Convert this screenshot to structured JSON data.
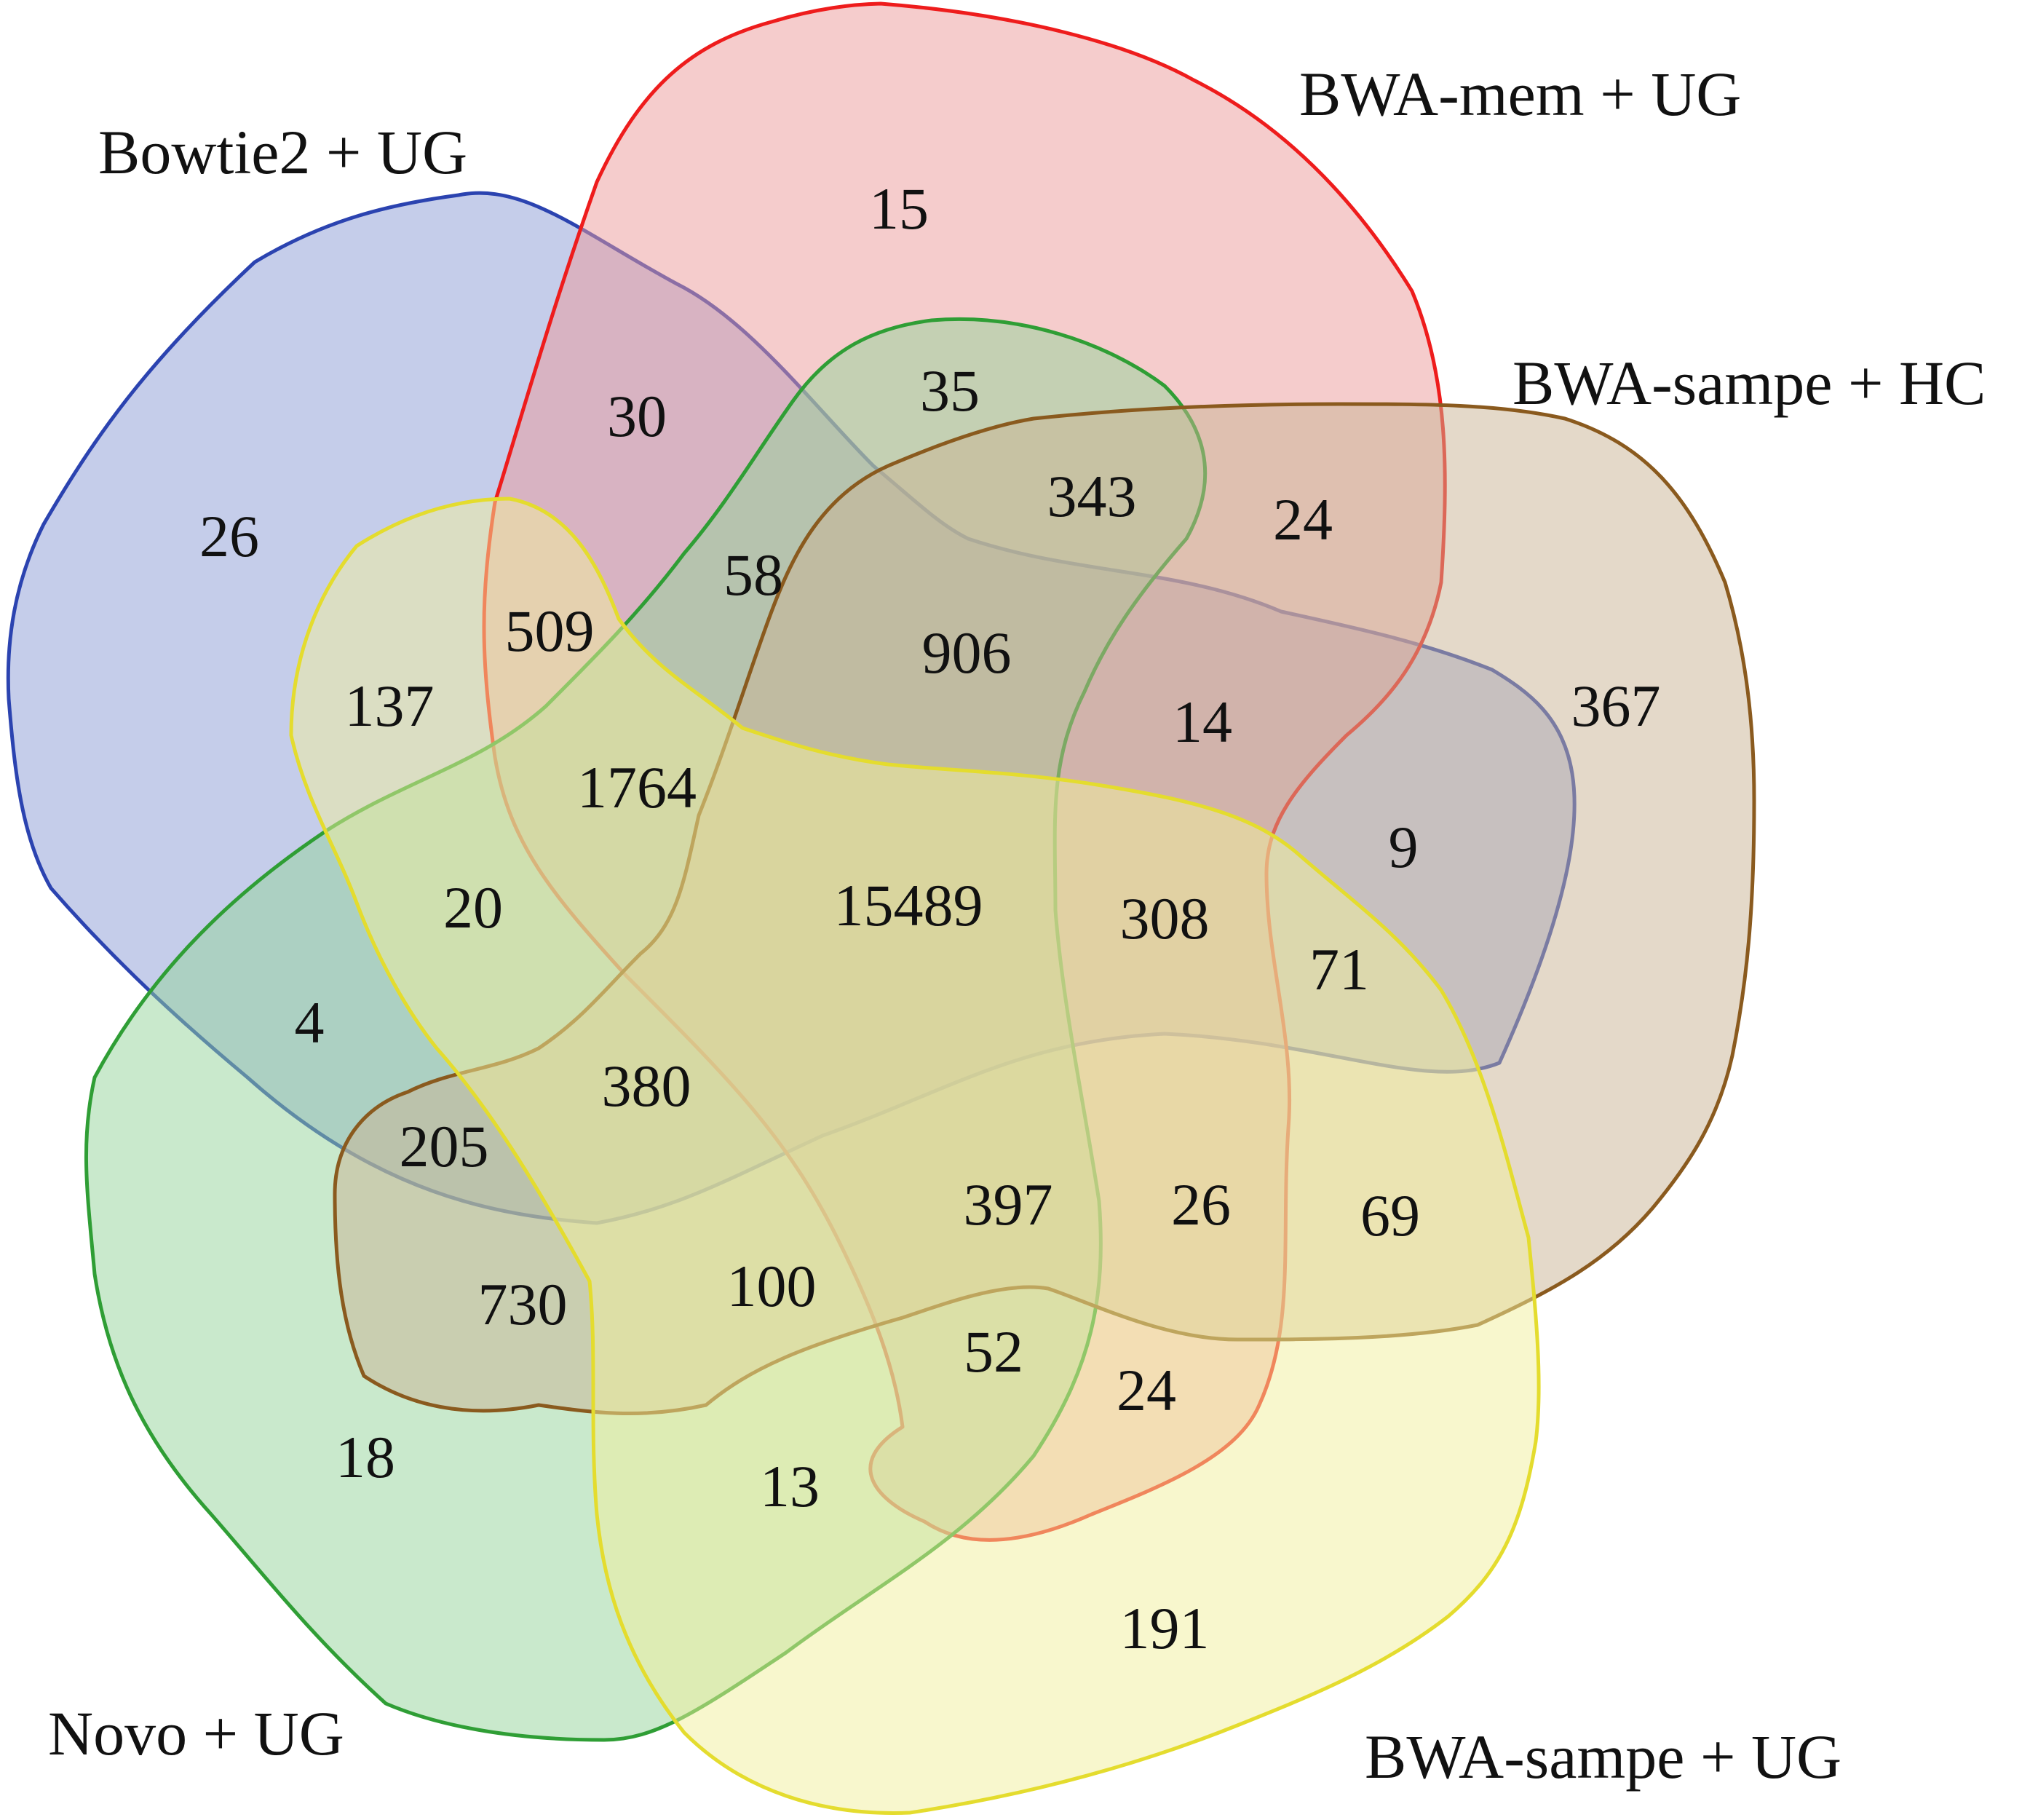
{
  "sets": [
    {
      "key": "bowtie2",
      "label": "Bowtie2 + UG",
      "fill": "#8c9bd6",
      "stroke": "#2b43b0"
    },
    {
      "key": "bwamem",
      "label": "BWA-mem + UG",
      "fill": "#ec9a9a",
      "stroke": "#ee1c1c"
    },
    {
      "key": "novo",
      "label": "Novo + UG",
      "fill": "#94d49a",
      "stroke": "#2f9e35"
    },
    {
      "key": "sampehc",
      "label": "BWA-sampe + HC",
      "fill": "#c9b493",
      "stroke": "#8a5a1e"
    },
    {
      "key": "sampeug",
      "label": "BWA-sampe + UG",
      "fill": "#f2f09c",
      "stroke": "#e4dc2e"
    }
  ],
  "regions": [
    {
      "key": "r-bwamem-only",
      "value": "15"
    },
    {
      "key": "r-bowtie2-only",
      "value": "26"
    },
    {
      "key": "r-bowtie2-bwamem",
      "value": "30"
    },
    {
      "key": "r-bwamem-novo",
      "value": "35"
    },
    {
      "key": "r-bwamem-novo-sampehc",
      "value": "343"
    },
    {
      "key": "r-bwamem-sampehc",
      "value": "24"
    },
    {
      "key": "r-sampehc-only",
      "value": "367"
    },
    {
      "key": "r-bowtie2-bwamem-novo",
      "value": "58"
    },
    {
      "key": "r-bowtie2-bwamem-sampeug",
      "value": "509"
    },
    {
      "key": "r-bowtie2-sampeug",
      "value": "137"
    },
    {
      "key": "r-bowtie2-bwamem-novo-sampehc",
      "value": "906"
    },
    {
      "key": "r-bowtie2-bwamem-sampehc",
      "value": "14"
    },
    {
      "key": "r-bowtie2-bwamem-novo-sampeug",
      "value": "1764"
    },
    {
      "key": "r-bowtie2-sampehc",
      "value": "9"
    },
    {
      "key": "r-bowtie2-novo-sampeug",
      "value": "20"
    },
    {
      "key": "r-all-five",
      "value": "15489"
    },
    {
      "key": "r-bowtie2-bwamem-sampehc-sampeug",
      "value": "308"
    },
    {
      "key": "r-bowtie2-sampehc-sampeug",
      "value": "71"
    },
    {
      "key": "r-bowtie2-novo",
      "value": "4"
    },
    {
      "key": "r-bowtie2-novo-sampehc-sampeug",
      "value": "380"
    },
    {
      "key": "r-bowtie2-novo-sampehc",
      "value": "205"
    },
    {
      "key": "r-bwamem-novo-sampehc-sampeug",
      "value": "397"
    },
    {
      "key": "r-bwamem-sampehc-sampeug",
      "value": "26"
    },
    {
      "key": "r-sampehc-sampeug",
      "value": "69"
    },
    {
      "key": "r-novo-sampehc",
      "value": "730"
    },
    {
      "key": "r-novo-sampehc-sampeug",
      "value": "100"
    },
    {
      "key": "r-bwamem-novo-sampeug",
      "value": "52"
    },
    {
      "key": "r-bwamem-sampeug",
      "value": "24"
    },
    {
      "key": "r-novo-only",
      "value": "18"
    },
    {
      "key": "r-novo-sampeug",
      "value": "13"
    },
    {
      "key": "r-sampeug-only",
      "value": "191"
    }
  ]
}
